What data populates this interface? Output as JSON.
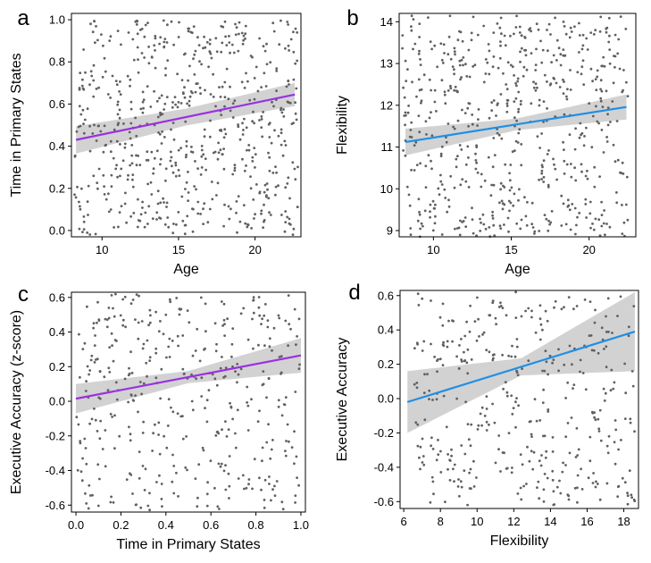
{
  "colors": {
    "points": "#606060",
    "band": "#d2d2d2",
    "purple": "#9a30e0",
    "blue": "#1f8fe6"
  },
  "chart_data": [
    {
      "id": "a",
      "type": "scatter",
      "panel_label": "a",
      "xlabel": "Age",
      "ylabel": "Time in Primary States",
      "xlim": [
        8,
        23
      ],
      "ylim": [
        -0.03,
        1.03
      ],
      "xticks": [
        10,
        15,
        20
      ],
      "yticks": [
        0.0,
        0.2,
        0.4,
        0.6,
        0.8,
        1.0
      ],
      "ytick_decimals": 1,
      "x_range": [
        8.2,
        22.8
      ],
      "y_range": [
        -0.02,
        1.0
      ],
      "n_points": 620,
      "seed": 11,
      "fit": {
        "x": [
          8.3,
          22.6
        ],
        "y": [
          0.43,
          0.645
        ],
        "color_key": "purple",
        "band_halfwidth": [
          0.065,
          0.04,
          0.055
        ]
      }
    },
    {
      "id": "b",
      "type": "scatter",
      "panel_label": "b",
      "xlabel": "Age",
      "ylabel": "Flexibility",
      "xlim": [
        7.8,
        23
      ],
      "ylim": [
        8.85,
        14.2
      ],
      "xticks": [
        10,
        15,
        20
      ],
      "yticks": [
        9,
        10,
        11,
        12,
        13,
        14
      ],
      "ytick_decimals": 0,
      "x_range": [
        8.0,
        22.5
      ],
      "y_range": [
        8.85,
        14.15
      ],
      "n_points": 600,
      "seed": 23,
      "fit": {
        "x": [
          8.2,
          22.4
        ],
        "y": [
          11.12,
          11.96
        ],
        "color_key": "blue",
        "band_halfwidth": [
          0.32,
          0.14,
          0.3
        ]
      }
    },
    {
      "id": "c",
      "type": "scatter",
      "panel_label": "c",
      "xlabel": "Time in Primary States",
      "ylabel": "Executive Accuracy (z-score)",
      "xlim": [
        -0.02,
        1.02
      ],
      "ylim": [
        -0.64,
        0.63
      ],
      "xticks": [
        0.0,
        0.2,
        0.4,
        0.6,
        0.8,
        1.0
      ],
      "xtick_decimals": 1,
      "yticks": [
        -0.6,
        -0.4,
        -0.2,
        0.0,
        0.2,
        0.4,
        0.6
      ],
      "ytick_decimals": 1,
      "x_range": [
        0.0,
        1.0
      ],
      "y_range": [
        -0.63,
        0.62
      ],
      "n_points": 400,
      "seed": 37,
      "fit": {
        "x": [
          0.0,
          1.0
        ],
        "y": [
          0.015,
          0.265
        ],
        "color_key": "purple",
        "band_halfwidth": [
          0.085,
          0.035,
          0.1
        ]
      }
    },
    {
      "id": "d",
      "type": "scatter",
      "panel_label": "d",
      "xlabel": "Flexibility",
      "ylabel": "Executive Accuracy",
      "xlim": [
        5.8,
        18.8
      ],
      "ylim": [
        -0.64,
        0.63
      ],
      "xticks": [
        6,
        8,
        10,
        12,
        14,
        16,
        18
      ],
      "xtick_decimals": 0,
      "yticks": [
        -0.6,
        -0.4,
        -0.2,
        0.0,
        0.2,
        0.4,
        0.6
      ],
      "ytick_decimals": 1,
      "x_range": [
        6.5,
        18.6
      ],
      "y_range": [
        -0.63,
        0.62
      ],
      "n_points": 380,
      "seed": 53,
      "fit": {
        "x": [
          6.2,
          18.6
        ],
        "y": [
          -0.02,
          0.39
        ],
        "color_key": "blue",
        "band_halfwidth": [
          0.18,
          0.05,
          0.23
        ]
      }
    }
  ]
}
